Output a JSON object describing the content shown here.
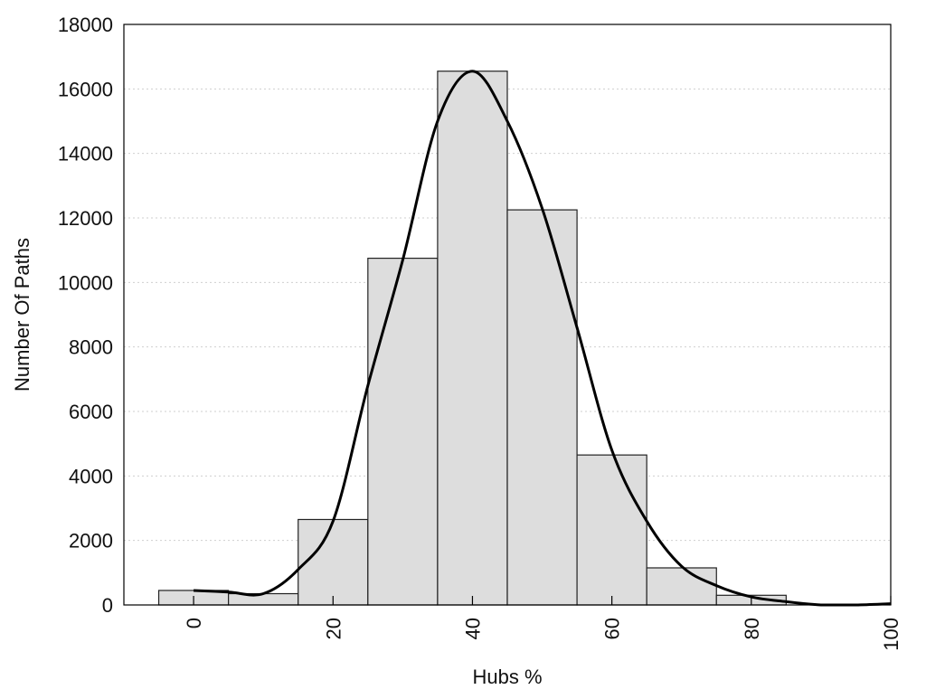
{
  "chart_data": {
    "type": "bar",
    "bin_centers": [
      0,
      10,
      20,
      30,
      40,
      50,
      60,
      70,
      80,
      90
    ],
    "bin_width": 10,
    "values": [
      450,
      350,
      2650,
      10750,
      16550,
      12250,
      4650,
      1150,
      300,
      0
    ],
    "density_curve": {
      "x": [
        0,
        5,
        10,
        15,
        20,
        25,
        30,
        35,
        40,
        45,
        50,
        55,
        60,
        65,
        70,
        75,
        80,
        85,
        90,
        95,
        100
      ],
      "y": [
        450,
        400,
        350,
        1100,
        2600,
        6800,
        10700,
        15000,
        16550,
        15000,
        12300,
        8600,
        4800,
        2600,
        1200,
        600,
        250,
        100,
        0,
        0,
        40
      ]
    },
    "xlabel": "Hubs %",
    "ylabel": "Number Of Paths",
    "xlim": [
      -10,
      100
    ],
    "ylim": [
      0,
      18000
    ],
    "x_ticks": [
      "0",
      "20",
      "40",
      "60",
      "80",
      "100"
    ],
    "y_ticks": [
      "0",
      "2000",
      "4000",
      "6000",
      "8000",
      "10000",
      "12000",
      "14000",
      "16000",
      "18000"
    ],
    "grid": "horizontal-dotted",
    "colors": {
      "bar_fill": "#dddddd",
      "bar_edge": "#222222",
      "curve": "#000000"
    }
  }
}
